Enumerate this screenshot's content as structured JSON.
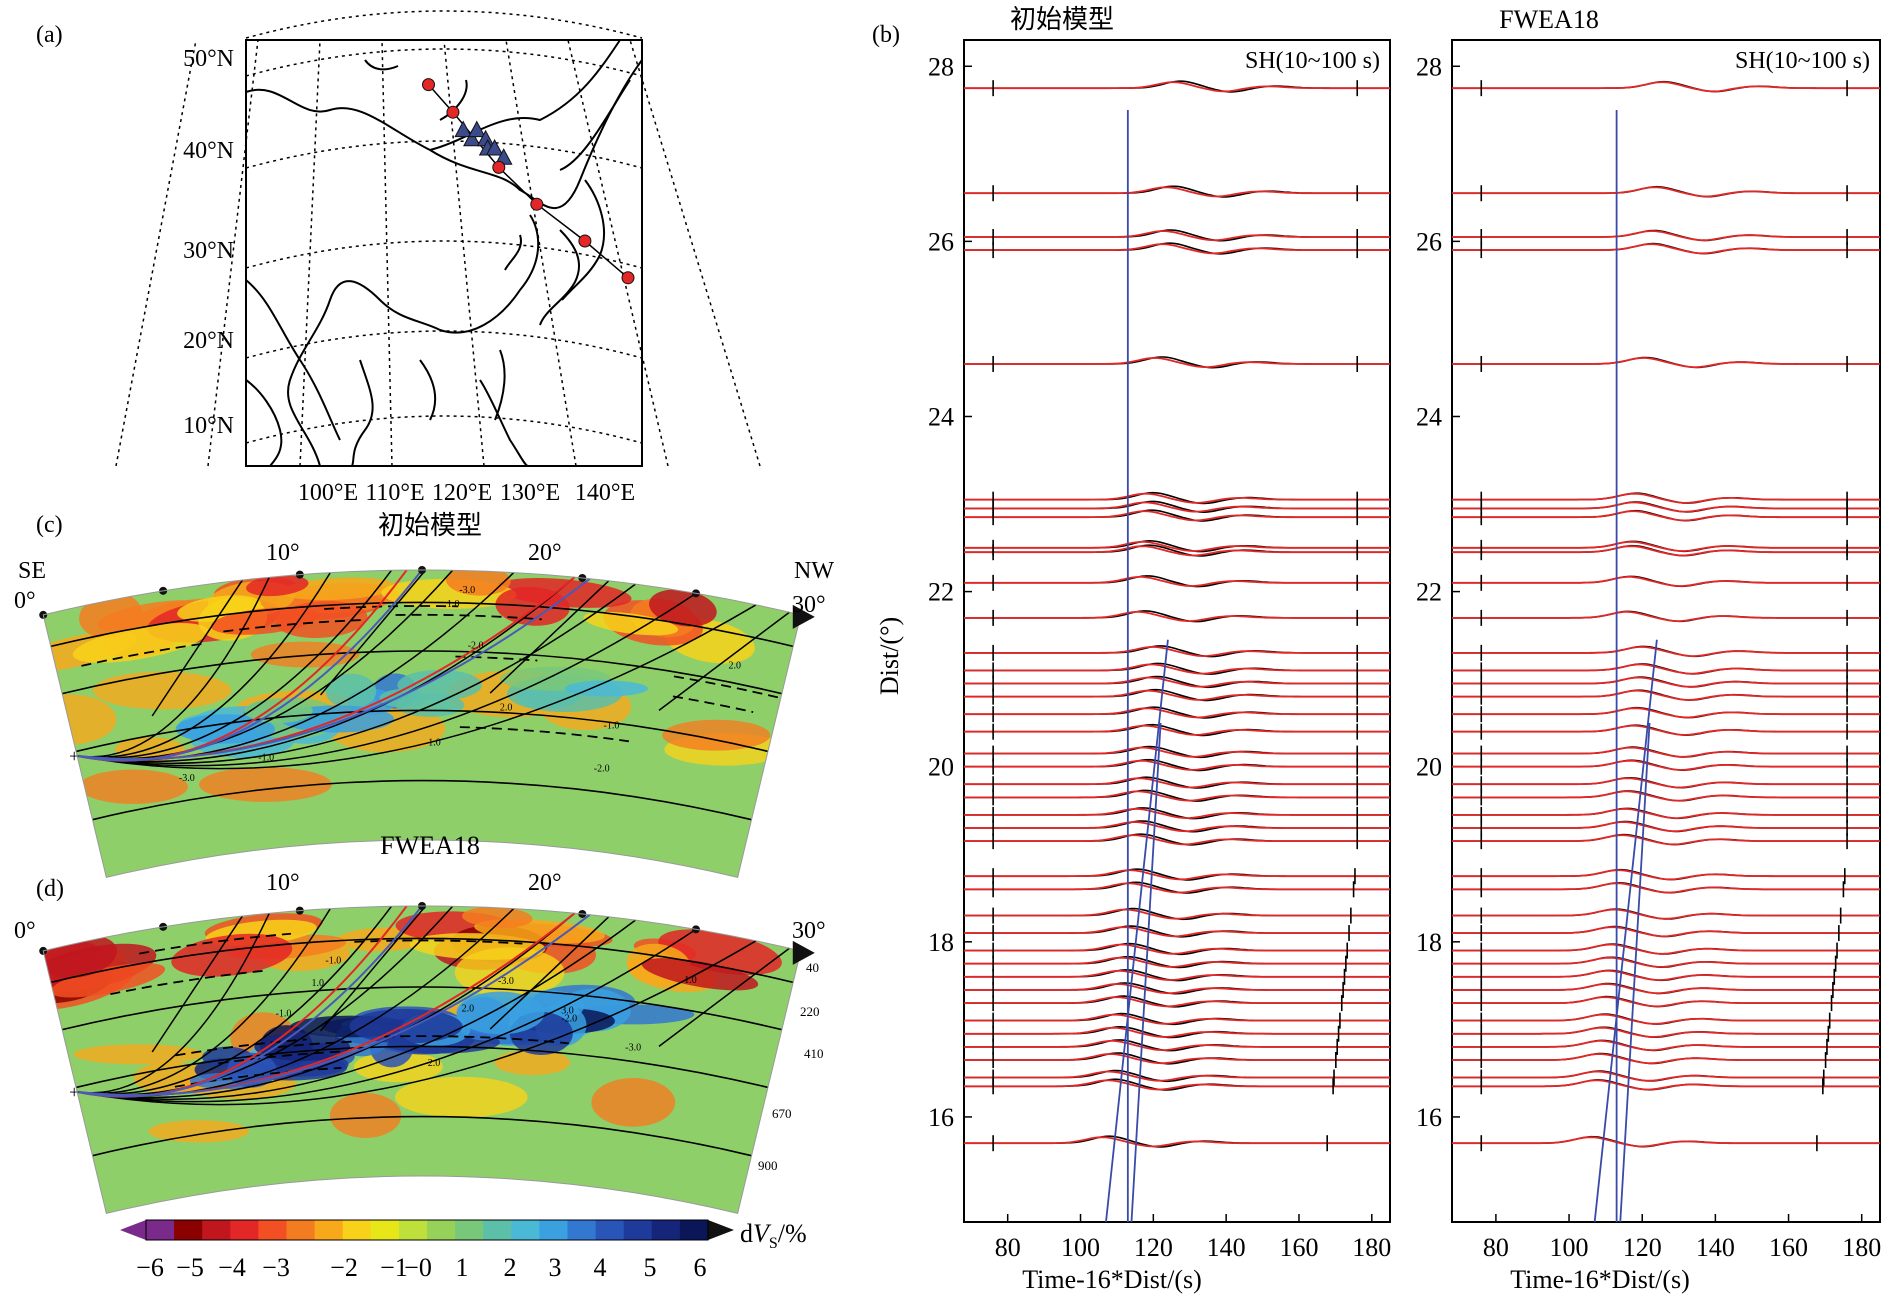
{
  "panel_labels": {
    "a": "(a)",
    "b": "(b)",
    "c": "(c)",
    "d": "(d)"
  },
  "chart_data": [
    {
      "type": "map",
      "panel": "(a)",
      "lat_labels": [
        "50°N",
        "40°N",
        "30°N",
        "20°N",
        "10°N"
      ],
      "lon_labels": [
        "100°E",
        "110°E",
        "120°E",
        "130°E",
        "140°E"
      ],
      "events_latlon": [
        [
          47,
          120
        ],
        [
          44,
          123
        ],
        [
          38,
          128
        ],
        [
          34,
          132
        ],
        [
          30,
          137
        ],
        [
          26,
          141
        ]
      ],
      "stations_latlon": [
        [
          42,
          124
        ],
        [
          41,
          125
        ],
        [
          42,
          126
        ],
        [
          41,
          127
        ],
        [
          40,
          127
        ],
        [
          40,
          128
        ],
        [
          39,
          129
        ]
      ],
      "colors": {
        "event": "#e32626",
        "station": "#3a4a8a"
      }
    },
    {
      "type": "cross-section",
      "panel": "(c)",
      "title": "初始模型",
      "end_labels": [
        "SE",
        "NW"
      ],
      "degree_labels": [
        "0°",
        "10°",
        "20°",
        "30°"
      ],
      "contour_labels": [
        "-3.0",
        "-2.0",
        "-1.0",
        "1.0",
        "2.0"
      ]
    },
    {
      "type": "cross-section",
      "panel": "(d)",
      "title": "FWEA18",
      "degree_labels": [
        "0°",
        "10°",
        "20°",
        "30°"
      ],
      "depth_labels": [
        "40",
        "220",
        "410",
        "670",
        "900"
      ],
      "contour_labels": [
        "-3.0",
        "-2.0",
        "-1.0",
        "1.0",
        "2.0",
        "3.0"
      ]
    },
    {
      "type": "colorbar",
      "label": "dV_S/%",
      "ticks": [
        "-6",
        "-5",
        "-4",
        "-3",
        "-2",
        "-1",
        "-0",
        "1",
        "2",
        "3",
        "4",
        "5",
        "6"
      ],
      "range": [
        -6,
        6
      ],
      "colors": [
        "#7a2a8a",
        "#8b0000",
        "#c0161e",
        "#e32626",
        "#f25022",
        "#f47c20",
        "#f7a81b",
        "#f8d21a",
        "#e6e619",
        "#bfe03a",
        "#96d25a",
        "#79c87a",
        "#5cc0a8",
        "#4ab9d6",
        "#3aa0e0",
        "#3278d0",
        "#2a55b8",
        "#1e3a9a",
        "#14257a",
        "#0a1658"
      ]
    },
    {
      "type": "line",
      "panel": "(b)",
      "title": "初始模型",
      "annotation": "SH(10~100 s)",
      "xlabel": "Time-16*Dist/(s)",
      "ylabel": "Dist/(°)",
      "xlim": [
        68,
        185
      ],
      "ylim": [
        14.8,
        28.3
      ],
      "xticks": [
        "80",
        "100",
        "120",
        "140",
        "160",
        "180"
      ],
      "yticks": [
        "16",
        "18",
        "20",
        "22",
        "24",
        "26",
        "28"
      ],
      "colors": {
        "observed": "#000000",
        "synthetic": "#e32626",
        "phase": "#3a4aa8"
      }
    },
    {
      "type": "line",
      "panel": "(b)",
      "title": "FWEA18",
      "annotation": "SH(10~100 s)",
      "xlabel": "Time-16*Dist/(s)",
      "xlim": [
        68,
        185
      ],
      "ylim": [
        14.8,
        28.3
      ],
      "xticks": [
        "80",
        "100",
        "120",
        "140",
        "160",
        "180"
      ],
      "yticks": [
        "16",
        "18",
        "20",
        "22",
        "24",
        "26",
        "28"
      ]
    }
  ],
  "trace_distances": [
    15.7,
    16.35,
    16.45,
    16.65,
    16.8,
    16.95,
    17.1,
    17.3,
    17.45,
    17.6,
    17.75,
    17.9,
    18.1,
    18.3,
    18.6,
    18.75,
    19.15,
    19.3,
    19.45,
    19.65,
    19.8,
    20.0,
    20.15,
    20.4,
    20.6,
    20.8,
    20.95,
    21.1,
    21.3,
    21.7,
    22.1,
    22.45,
    22.5,
    22.85,
    22.95,
    23.05,
    24.6,
    25.9,
    26.05,
    26.55,
    27.75
  ],
  "phase_lines": [
    {
      "d0": 14.8,
      "t0": 107,
      "d1": 21.45,
      "t1": 124
    },
    {
      "d0": 14.8,
      "t0": 113,
      "d1": 27.5,
      "t1": 113
    },
    {
      "d0": 14.8,
      "t0": 114,
      "d1": 20.5,
      "t1": 122
    }
  ],
  "window_marks": {
    "t_start": 76,
    "t_end": 176
  }
}
